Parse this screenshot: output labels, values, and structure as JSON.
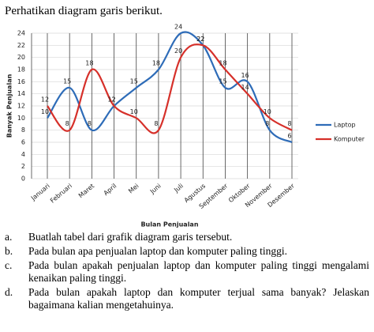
{
  "intro": "Perhatikan diagram garis berikut.",
  "chart_data": {
    "type": "line",
    "x_label": "Bulan Penjualan",
    "y_label": "Banyak Penjualan",
    "categories": [
      "Januari",
      "Februari",
      "Maret",
      "April",
      "Mei",
      "Juni",
      "Juli",
      "Agustus",
      "September",
      "Oktober",
      "November",
      "Desember"
    ],
    "series": [
      {
        "name": "Laptop",
        "color": "#2e6cb8",
        "values": [
          10,
          15,
          8,
          12,
          15,
          18,
          24,
          22,
          15,
          16,
          8,
          6
        ]
      },
      {
        "name": "Komputer",
        "color": "#d6302a",
        "values": [
          12,
          8,
          18,
          12,
          10,
          8,
          20,
          22,
          18,
          14,
          10,
          8
        ]
      }
    ],
    "ylim": [
      0,
      24
    ],
    "yticks": [
      0,
      2,
      4,
      6,
      8,
      10,
      12,
      14,
      16,
      18,
      20,
      22,
      24
    ],
    "grid": true,
    "legend": "right"
  },
  "questions": [
    {
      "label": "a.",
      "text": "Buatlah tabel dari grafik diagram garis tersebut."
    },
    {
      "label": "b.",
      "text": "Pada bulan apa penjualan laptop dan komputer paling tinggi."
    },
    {
      "label": "c.",
      "text": "Pada bulan apakah penjualan laptop dan komputer paling tinggi mengalami kenaikan paling tinggi."
    },
    {
      "label": "d.",
      "text": "Pada bulan apakah laptop dan komputer terjual sama banyak? Jelaskan bagaimana kalian mengetahuinya."
    }
  ]
}
